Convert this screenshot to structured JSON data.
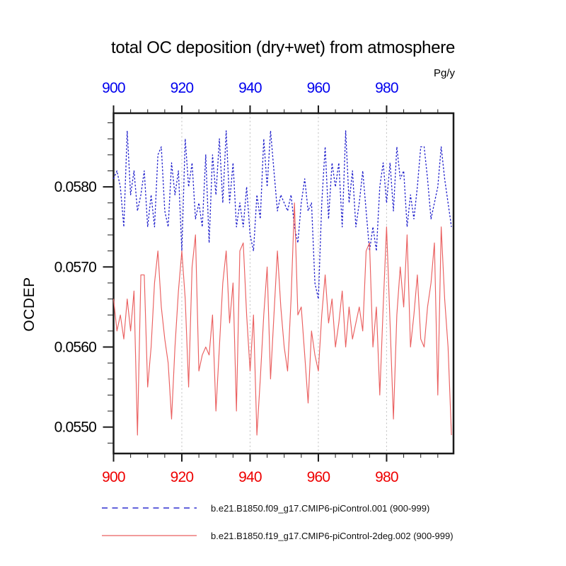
{
  "chart": {
    "title": "total OC deposition (dry+wet) from atmosphere",
    "unit_label": "Pg/y",
    "y_axis_label": "OCDEP"
  },
  "legend": {
    "items": [
      {
        "label": "b.e21.B1850.f09_g17.CMIP6-piControl.001 (900-999)",
        "color": "#4d4dd6",
        "style": "dashed"
      },
      {
        "label": "b.e21.B1850.f19_g17.CMIP6-piControl-2deg.002 (900-999)",
        "color": "#ea5f5f",
        "style": "solid"
      }
    ]
  },
  "chart_data": {
    "type": "line",
    "title": "total OC deposition (dry+wet) from atmosphere",
    "unit": "Pg/y",
    "ylabel": "OCDEP",
    "xlabel": "",
    "grid": "vertical-dotted",
    "legend_position": "bottom-left",
    "x_start": 900,
    "x_end": 999,
    "xlim": [
      900,
      999.6
    ],
    "ylim": [
      0.05467,
      0.05892
    ],
    "x_ticks_major": [
      900,
      920,
      940,
      960,
      980
    ],
    "x_tick_minor_step": 5,
    "y_ticks_major": [
      0.055,
      0.056,
      0.057,
      0.058
    ],
    "y_tick_minor_step": 0.0002,
    "grid_x_years": [
      920,
      940,
      960,
      980
    ],
    "top_axis_label_color": "#0000ee",
    "bottom_axis_label_color": "#ee0000",
    "left_axis_label_color": "#000000",
    "grid_color": "#c4c4c4",
    "series": [
      {
        "name": "b.e21.B1850.f09_g17.CMIP6-piControl.001 (900-999)",
        "color": "#2020cc",
        "line_style": "dashed",
        "dash": "2.6 2.3",
        "width": 1.3,
        "values": [
          0.0581,
          0.0582,
          0.058,
          0.0575,
          0.0587,
          0.0579,
          0.0582,
          0.0577,
          0.0579,
          0.0582,
          0.0575,
          0.0579,
          0.0575,
          0.0584,
          0.0585,
          0.0577,
          0.0575,
          0.0583,
          0.0579,
          0.0582,
          0.0572,
          0.0586,
          0.058,
          0.0583,
          0.0576,
          0.0578,
          0.0575,
          0.0584,
          0.0573,
          0.0584,
          0.0579,
          0.0586,
          0.0578,
          0.0587,
          0.0578,
          0.0583,
          0.0575,
          0.0578,
          0.0575,
          0.058,
          0.0574,
          0.0572,
          0.0579,
          0.0576,
          0.0586,
          0.058,
          0.0587,
          0.0582,
          0.0577,
          0.0579,
          0.0578,
          0.0577,
          0.0579,
          0.0575,
          0.0573,
          0.0578,
          0.0581,
          0.0577,
          0.0578,
          0.0568,
          0.0566,
          0.0578,
          0.0585,
          0.0576,
          0.0583,
          0.058,
          0.0583,
          0.0575,
          0.0587,
          0.0578,
          0.0582,
          0.0575,
          0.0578,
          0.0582,
          0.0577,
          0.0572,
          0.0575,
          0.0572,
          0.058,
          0.0583,
          0.0578,
          0.0583,
          0.0577,
          0.0585,
          0.0581,
          0.0582,
          0.0575,
          0.0579,
          0.0576,
          0.058,
          0.0585,
          0.0585,
          0.0581,
          0.0576,
          0.0578,
          0.058,
          0.0585,
          0.0581,
          0.0578,
          0.0575
        ]
      },
      {
        "name": "b.e21.B1850.f19_g17.CMIP6-piControl-2deg.002 (900-999)",
        "color": "#ea5f5f",
        "line_style": "solid",
        "dash": "",
        "width": 1.15,
        "values": [
          0.0566,
          0.0562,
          0.0564,
          0.0561,
          0.0566,
          0.0562,
          0.0567,
          0.0549,
          0.0569,
          0.0569,
          0.0555,
          0.056,
          0.0568,
          0.0572,
          0.0565,
          0.0561,
          0.0558,
          0.0551,
          0.056,
          0.0567,
          0.0572,
          0.0566,
          0.0555,
          0.057,
          0.0574,
          0.0557,
          0.0559,
          0.056,
          0.0559,
          0.0564,
          0.0552,
          0.056,
          0.0568,
          0.0572,
          0.0563,
          0.0568,
          0.0552,
          0.0572,
          0.0573,
          0.0564,
          0.0557,
          0.0564,
          0.0549,
          0.0556,
          0.0564,
          0.057,
          0.0556,
          0.0564,
          0.0572,
          0.0565,
          0.056,
          0.0557,
          0.0566,
          0.0578,
          0.0564,
          0.0565,
          0.0559,
          0.0553,
          0.0562,
          0.0559,
          0.0557,
          0.0564,
          0.0569,
          0.0563,
          0.0566,
          0.056,
          0.0563,
          0.0567,
          0.056,
          0.0565,
          0.0561,
          0.0563,
          0.0565,
          0.0562,
          0.0572,
          0.0573,
          0.056,
          0.0565,
          0.0554,
          0.0565,
          0.0575,
          0.0563,
          0.0551,
          0.0564,
          0.057,
          0.0565,
          0.0574,
          0.056,
          0.0564,
          0.0569,
          0.0561,
          0.056,
          0.0565,
          0.0568,
          0.0573,
          0.0554,
          0.0575,
          0.0566,
          0.056,
          0.0549
        ]
      }
    ]
  }
}
